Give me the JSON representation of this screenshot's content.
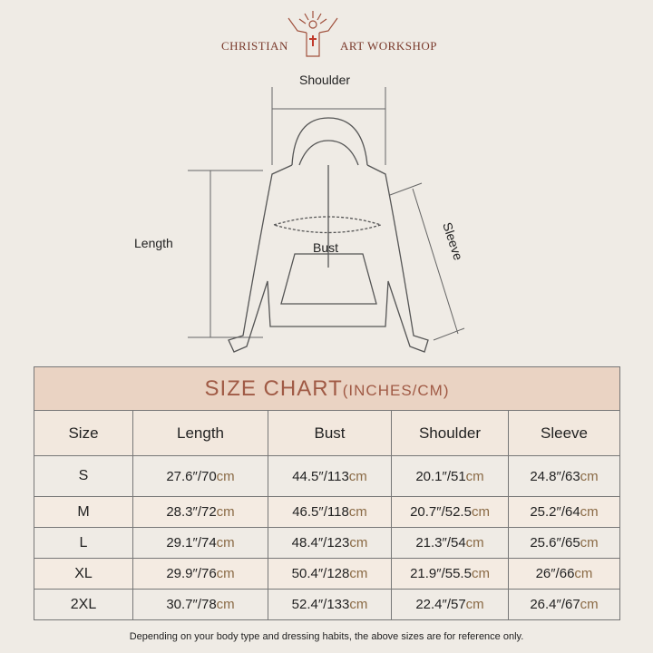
{
  "brand": {
    "left": "CHRISTIAN",
    "right": "ART WORKSHOP"
  },
  "diagram": {
    "shoulder": "Shoulder",
    "length": "Length",
    "bust": "Bust",
    "sleeve": "Sleeve"
  },
  "chart": {
    "title": "SIZE CHART",
    "unit": "(INCHES/CM)",
    "headers": [
      "Size",
      "Length",
      "Bust",
      "Shoulder",
      "Sleeve"
    ],
    "rows": [
      {
        "size": "S",
        "length": [
          "27.6″/70",
          "cm"
        ],
        "bust": [
          "44.5″/113",
          "cm"
        ],
        "shoulder": [
          "20.1″/51",
          "cm"
        ],
        "sleeve": [
          "24.8″/63",
          "cm"
        ]
      },
      {
        "size": "M",
        "length": [
          "28.3″/72",
          "cm"
        ],
        "bust": [
          "46.5″/118",
          "cm"
        ],
        "shoulder": [
          "20.7″/52.5",
          "cm"
        ],
        "sleeve": [
          "25.2″/64",
          "cm"
        ]
      },
      {
        "size": "L",
        "length": [
          "29.1″/74",
          "cm"
        ],
        "bust": [
          "48.4″/123",
          "cm"
        ],
        "shoulder": [
          "21.3″/54",
          "cm"
        ],
        "sleeve": [
          "25.6″/65",
          "cm"
        ]
      },
      {
        "size": "XL",
        "length": [
          "29.9″/76",
          "cm"
        ],
        "bust": [
          "50.4″/128",
          "cm"
        ],
        "shoulder": [
          "21.9″/55.5",
          "cm"
        ],
        "sleeve": [
          "26″/66",
          "cm"
        ]
      },
      {
        "size": "2XL",
        "length": [
          "30.7″/78",
          "cm"
        ],
        "bust": [
          "52.4″/133",
          "cm"
        ],
        "shoulder": [
          "22.4″/57",
          "cm"
        ],
        "sleeve": [
          "26.4″/67",
          "cm"
        ]
      }
    ]
  },
  "footnote": "Depending on your body type and dressing habits, the above sizes are for reference only."
}
